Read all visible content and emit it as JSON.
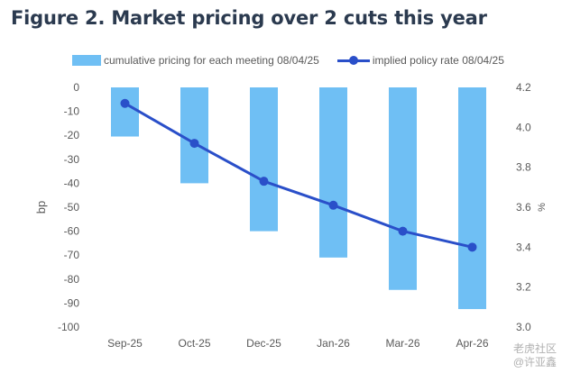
{
  "figure_title": "Figure 2. Market pricing over 2 cuts this year",
  "watermark": {
    "line1": "老虎社区",
    "line2": "@许亚鑫"
  },
  "colors": {
    "bar": "#6fbff4",
    "line": "#2a4fc9",
    "axis_text": "#595959",
    "title": "#2b3a4f"
  },
  "chart_data": {
    "type": "bar",
    "title": "Figure 2. Market pricing over 2 cuts this year",
    "categories": [
      "Sep-25",
      "Oct-25",
      "Dec-25",
      "Jan-26",
      "Mar-26",
      "Apr-26"
    ],
    "series": [
      {
        "name": "cumulative pricing for each meeting  08/04/25",
        "type": "bar",
        "axis": "left",
        "values": [
          -20.5,
          -40,
          -60,
          -71,
          -84.5,
          -92.5
        ]
      },
      {
        "name": "implied policy rate 08/04/25",
        "type": "line",
        "axis": "right",
        "values": [
          4.12,
          3.92,
          3.73,
          3.61,
          3.48,
          3.4
        ]
      }
    ],
    "ylabel": "bp",
    "y2label": "%",
    "ylim": [
      -100,
      0
    ],
    "y2lim": [
      3.0,
      4.2
    ],
    "yticks": [
      "0",
      "-10",
      "-20",
      "-30",
      "-40",
      "-50",
      "-60",
      "-70",
      "-80",
      "-90",
      "-100"
    ],
    "y2ticks": [
      "4.2",
      "4.0",
      "3.8",
      "3.6",
      "3.4",
      "3.2",
      "3.0"
    ],
    "grid": false,
    "legend": "top"
  }
}
